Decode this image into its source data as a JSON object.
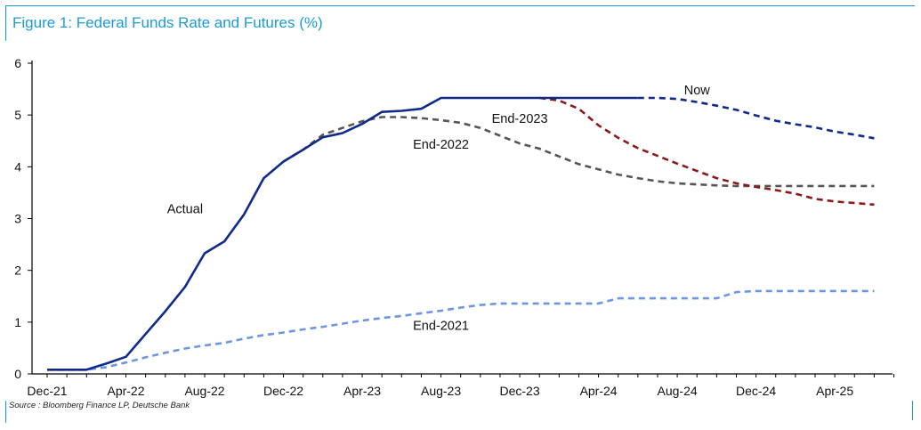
{
  "figure": {
    "title": "Figure 1: Federal Funds Rate and Futures (%)",
    "source": "Source : Bloomberg Finance LP, Deutsche Bank"
  },
  "chart_data": {
    "type": "line",
    "title": "Figure 1: Federal Funds Rate and Futures (%)",
    "xlabel": "",
    "ylabel": "",
    "x_ticks": [
      "Dec-21",
      "Apr-22",
      "Aug-22",
      "Dec-22",
      "Apr-23",
      "Aug-23",
      "Dec-23",
      "Apr-24",
      "Aug-24",
      "Dec-24",
      "Apr-25"
    ],
    "xlim": [
      "2021-12",
      "2025-07"
    ],
    "ylim": [
      0,
      6
    ],
    "y_ticks": [
      0,
      1,
      2,
      3,
      4,
      5,
      6
    ],
    "grid": false,
    "legend": "none; series labelled directly on chart",
    "series": [
      {
        "name": "Actual",
        "color": "#102a8c",
        "style": "solid",
        "points": [
          [
            "2021-12",
            0.08
          ],
          [
            "2022-01",
            0.08
          ],
          [
            "2022-02",
            0.08
          ],
          [
            "2022-03",
            0.2
          ],
          [
            "2022-04",
            0.33
          ],
          [
            "2022-05",
            0.77
          ],
          [
            "2022-06",
            1.21
          ],
          [
            "2022-07",
            1.68
          ],
          [
            "2022-08",
            2.33
          ],
          [
            "2022-09",
            2.56
          ],
          [
            "2022-10",
            3.08
          ],
          [
            "2022-11",
            3.78
          ],
          [
            "2022-12",
            4.1
          ],
          [
            "2023-01",
            4.33
          ],
          [
            "2023-02",
            4.57
          ],
          [
            "2023-03",
            4.65
          ],
          [
            "2023-04",
            4.83
          ],
          [
            "2023-05",
            5.06
          ],
          [
            "2023-06",
            5.08
          ],
          [
            "2023-07",
            5.12
          ],
          [
            "2023-08",
            5.33
          ],
          [
            "2023-09",
            5.33
          ],
          [
            "2023-10",
            5.33
          ],
          [
            "2023-11",
            5.33
          ],
          [
            "2023-12",
            5.33
          ],
          [
            "2024-01",
            5.33
          ],
          [
            "2024-02",
            5.33
          ],
          [
            "2024-03",
            5.33
          ],
          [
            "2024-04",
            5.33
          ],
          [
            "2024-05",
            5.33
          ],
          [
            "2024-06",
            5.33
          ]
        ]
      },
      {
        "name": "Now",
        "color": "#102a8c",
        "style": "dashed",
        "points": [
          [
            "2024-06",
            5.33
          ],
          [
            "2024-07",
            5.33
          ],
          [
            "2024-08",
            5.31
          ],
          [
            "2024-09",
            5.25
          ],
          [
            "2024-10",
            5.18
          ],
          [
            "2024-11",
            5.1
          ],
          [
            "2024-12",
            4.99
          ],
          [
            "2025-01",
            4.89
          ],
          [
            "2025-02",
            4.82
          ],
          [
            "2025-03",
            4.76
          ],
          [
            "2025-04",
            4.68
          ],
          [
            "2025-05",
            4.62
          ],
          [
            "2025-06",
            4.55
          ]
        ]
      },
      {
        "name": "End-2023",
        "color": "#8b1a1a",
        "style": "dashed",
        "points": [
          [
            "2024-01",
            5.33
          ],
          [
            "2024-02",
            5.28
          ],
          [
            "2024-03",
            5.12
          ],
          [
            "2024-04",
            4.8
          ],
          [
            "2024-05",
            4.56
          ],
          [
            "2024-06",
            4.36
          ],
          [
            "2024-07",
            4.21
          ],
          [
            "2024-08",
            4.06
          ],
          [
            "2024-09",
            3.92
          ],
          [
            "2024-10",
            3.78
          ],
          [
            "2024-11",
            3.68
          ],
          [
            "2024-12",
            3.61
          ],
          [
            "2025-01",
            3.55
          ],
          [
            "2025-02",
            3.48
          ],
          [
            "2025-03",
            3.38
          ],
          [
            "2025-04",
            3.33
          ],
          [
            "2025-06",
            3.27
          ]
        ]
      },
      {
        "name": "End-2022",
        "color": "#555555",
        "style": "dashed",
        "points": [
          [
            "2022-12",
            4.1
          ],
          [
            "2023-01",
            4.33
          ],
          [
            "2023-02",
            4.62
          ],
          [
            "2023-03",
            4.75
          ],
          [
            "2023-04",
            4.88
          ],
          [
            "2023-05",
            4.96
          ],
          [
            "2023-06",
            4.96
          ],
          [
            "2023-07",
            4.94
          ],
          [
            "2023-08",
            4.9
          ],
          [
            "2023-09",
            4.85
          ],
          [
            "2023-10",
            4.75
          ],
          [
            "2023-11",
            4.6
          ],
          [
            "2023-12",
            4.45
          ],
          [
            "2024-01",
            4.35
          ],
          [
            "2024-02",
            4.2
          ],
          [
            "2024-03",
            4.05
          ],
          [
            "2024-04",
            3.95
          ],
          [
            "2024-05",
            3.85
          ],
          [
            "2024-06",
            3.78
          ],
          [
            "2024-07",
            3.72
          ],
          [
            "2024-08",
            3.68
          ],
          [
            "2024-09",
            3.66
          ],
          [
            "2024-10",
            3.64
          ],
          [
            "2024-11",
            3.63
          ],
          [
            "2024-12",
            3.63
          ],
          [
            "2025-03",
            3.63
          ],
          [
            "2025-06",
            3.63
          ]
        ]
      },
      {
        "name": "End-2021",
        "color": "#6f95e0",
        "style": "dashed",
        "points": [
          [
            "2021-12",
            0.08
          ],
          [
            "2022-01",
            0.08
          ],
          [
            "2022-02",
            0.08
          ],
          [
            "2022-03",
            0.13
          ],
          [
            "2022-04",
            0.22
          ],
          [
            "2022-05",
            0.32
          ],
          [
            "2022-06",
            0.41
          ],
          [
            "2022-07",
            0.49
          ],
          [
            "2022-08",
            0.55
          ],
          [
            "2022-09",
            0.6
          ],
          [
            "2022-10",
            0.68
          ],
          [
            "2022-11",
            0.75
          ],
          [
            "2022-12",
            0.8
          ],
          [
            "2023-01",
            0.86
          ],
          [
            "2023-02",
            0.91
          ],
          [
            "2023-03",
            0.97
          ],
          [
            "2023-04",
            1.03
          ],
          [
            "2023-05",
            1.08
          ],
          [
            "2023-06",
            1.12
          ],
          [
            "2023-07",
            1.17
          ],
          [
            "2023-08",
            1.22
          ],
          [
            "2023-09",
            1.28
          ],
          [
            "2023-10",
            1.33
          ],
          [
            "2023-11",
            1.36
          ],
          [
            "2023-12",
            1.36
          ],
          [
            "2024-01",
            1.36
          ],
          [
            "2024-02",
            1.36
          ],
          [
            "2024-03",
            1.36
          ],
          [
            "2024-04",
            1.36
          ],
          [
            "2024-05",
            1.46
          ],
          [
            "2024-06",
            1.46
          ],
          [
            "2024-07",
            1.46
          ],
          [
            "2024-08",
            1.46
          ],
          [
            "2024-09",
            1.46
          ],
          [
            "2024-10",
            1.46
          ],
          [
            "2024-11",
            1.58
          ],
          [
            "2024-12",
            1.6
          ],
          [
            "2025-03",
            1.6
          ],
          [
            "2025-06",
            1.6
          ]
        ]
      }
    ],
    "annotations": [
      {
        "text": "Actual",
        "x": "2022-07",
        "y": 3.1
      },
      {
        "text": "Now",
        "x": "2024-09",
        "y": 5.4
      },
      {
        "text": "End-2023",
        "x": "2023-12",
        "y": 4.85
      },
      {
        "text": "End-2022",
        "x": "2023-08",
        "y": 4.35
      },
      {
        "text": "End-2021",
        "x": "2023-08",
        "y": 0.85
      }
    ]
  }
}
